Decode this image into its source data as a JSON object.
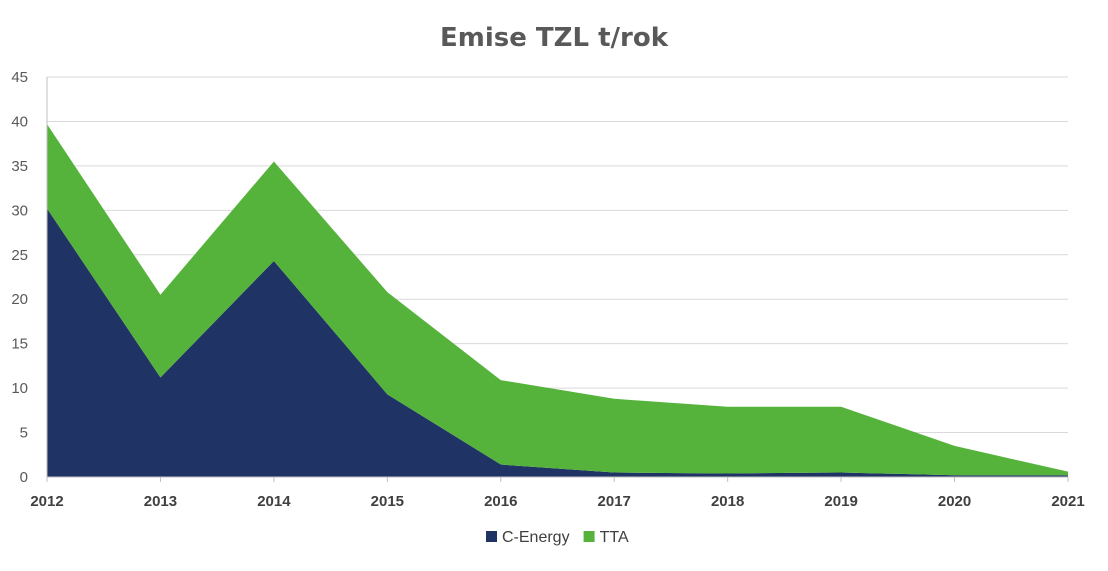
{
  "chart_data": {
    "type": "area",
    "stacked": true,
    "title": "Emise TZL t/rok",
    "xlabel": "",
    "ylabel": "",
    "ylim": [
      0,
      45
    ],
    "yticks": [
      0,
      5,
      10,
      15,
      20,
      25,
      30,
      35,
      40,
      45
    ],
    "categories": [
      "2012",
      "2013",
      "2014",
      "2015",
      "2016",
      "2017",
      "2018",
      "2019",
      "2020",
      "2021"
    ],
    "series": [
      {
        "name": "C-Energy",
        "color": "#1f3364",
        "values": [
          30.2,
          11.2,
          24.3,
          9.3,
          1.4,
          0.5,
          0.4,
          0.5,
          0.2,
          0.2
        ]
      },
      {
        "name": "TTA",
        "color": "#55b33c",
        "values": [
          9.5,
          9.3,
          11.2,
          11.5,
          9.5,
          8.3,
          7.5,
          7.4,
          3.3,
          0.4
        ]
      }
    ],
    "grid": true,
    "legend_position": "bottom"
  }
}
